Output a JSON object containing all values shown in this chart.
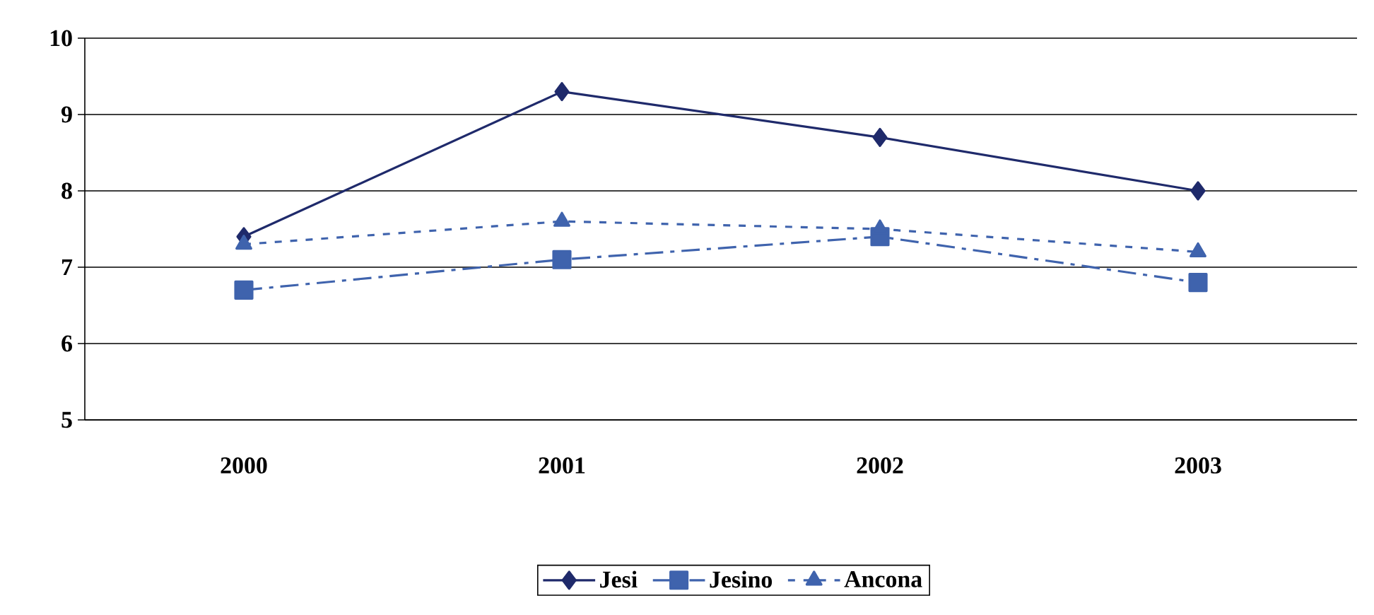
{
  "chart_data": {
    "type": "line",
    "categories": [
      "2000",
      "2001",
      "2002",
      "2003"
    ],
    "series": [
      {
        "name": "Jesi",
        "color": "#1f2a6b",
        "values": [
          7.4,
          9.3,
          8.7,
          8.0
        ],
        "marker": "diamond",
        "line_style": "solid"
      },
      {
        "name": "Jesino",
        "color": "#3f63ad",
        "values": [
          6.7,
          7.1,
          7.4,
          6.8
        ],
        "marker": "square",
        "line_style": "dashed"
      },
      {
        "name": "Ancona",
        "color": "#3f63ad",
        "values": [
          7.3,
          7.6,
          7.5,
          7.2
        ],
        "marker": "triangle",
        "line_style": "dotted"
      }
    ],
    "ylim": [
      5,
      10
    ],
    "yticks": [
      5,
      6,
      7,
      8,
      9,
      10
    ],
    "grid": "y",
    "legend": "bottom"
  }
}
